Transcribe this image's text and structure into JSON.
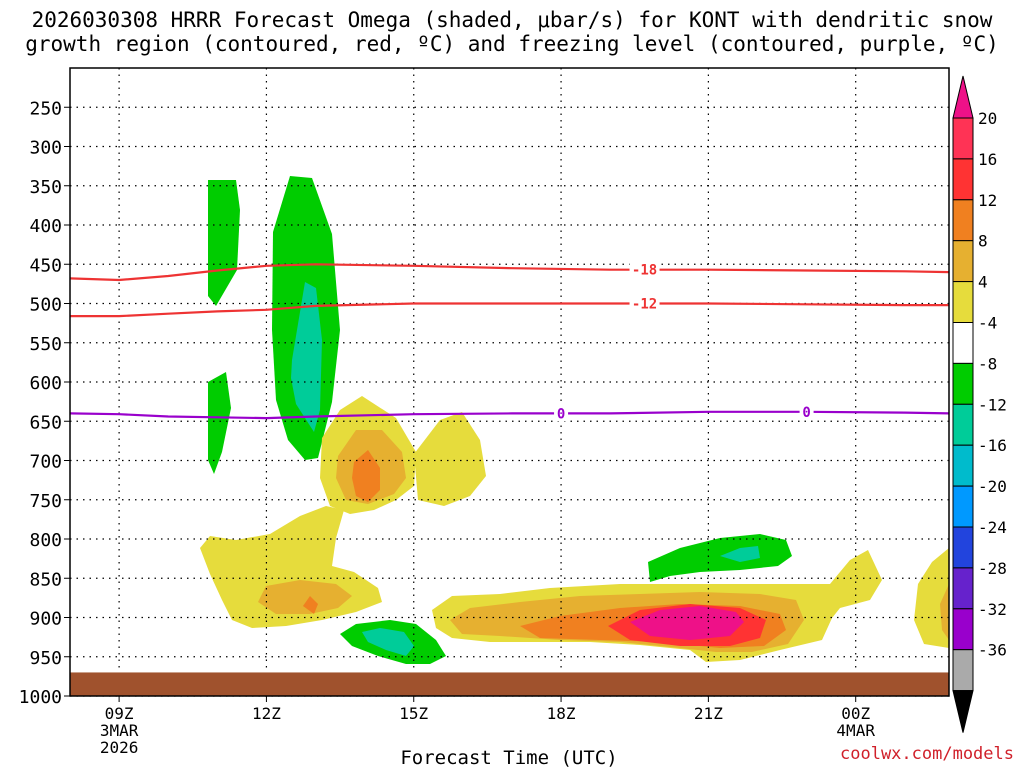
{
  "chart_data": {
    "type": "contour",
    "title_line1": "2026030308 HRRR Forecast Omega (shaded, μbar/s) for KONT with dendritic snow",
    "title_line2": "growth region (contoured, red, ºC) and freezing level (contoured, purple, ºC)",
    "xlabel": "Forecast Time (UTC)",
    "ylabel": "",
    "x_ticks": [
      {
        "value": 9,
        "label": "09Z",
        "sub1": "3MAR",
        "sub2": "2026"
      },
      {
        "value": 12,
        "label": "12Z",
        "sub1": "",
        "sub2": ""
      },
      {
        "value": 15,
        "label": "15Z",
        "sub1": "",
        "sub2": ""
      },
      {
        "value": 18,
        "label": "18Z",
        "sub1": "",
        "sub2": ""
      },
      {
        "value": 21,
        "label": "21Z",
        "sub1": "",
        "sub2": ""
      },
      {
        "value": 24,
        "label": "00Z",
        "sub1": "4MAR",
        "sub2": ""
      }
    ],
    "x_range": [
      8,
      25.9
    ],
    "y_ticks": [
      250,
      300,
      350,
      400,
      450,
      500,
      550,
      600,
      650,
      700,
      750,
      800,
      850,
      900,
      950,
      1000
    ],
    "y_range_hpa": [
      200,
      1000
    ],
    "colorbar": {
      "labels": [
        "20",
        "16",
        "12",
        "8",
        "4",
        "-4",
        "-8",
        "-12",
        "-16",
        "-20",
        "-24",
        "-28",
        "-32",
        "-36"
      ],
      "colors": [
        "#ff3355",
        "#ff3333",
        "#f08020",
        "#e6b030",
        "#e6dc3c",
        "#ffffff",
        "#00cc00",
        "#00cc99",
        "#00bbcc",
        "#0099ff",
        "#2244dd",
        "#6622cc",
        "#9900cc",
        "#aaaaaa"
      ],
      "top_color": "#ee1188",
      "bottom_color": "#000000"
    },
    "contours": [
      {
        "name": "dgz-top",
        "color": "#ee3333",
        "label": "-18",
        "label_x": 19.7,
        "points": [
          [
            8,
            468
          ],
          [
            9,
            470
          ],
          [
            10,
            465
          ],
          [
            11,
            458
          ],
          [
            12,
            452
          ],
          [
            13,
            450
          ],
          [
            15,
            452
          ],
          [
            17,
            455
          ],
          [
            19,
            457
          ],
          [
            21,
            457
          ],
          [
            23,
            458
          ],
          [
            25,
            459
          ],
          [
            25.9,
            460
          ]
        ]
      },
      {
        "name": "dgz-bottom",
        "color": "#ee3333",
        "label": "-12",
        "label_x": 19.7,
        "points": [
          [
            8,
            516
          ],
          [
            9,
            516
          ],
          [
            10,
            513
          ],
          [
            11,
            510
          ],
          [
            12,
            508
          ],
          [
            13,
            503
          ],
          [
            15,
            500
          ],
          [
            17,
            500
          ],
          [
            19,
            500
          ],
          [
            21,
            500
          ],
          [
            23,
            501
          ],
          [
            25,
            502
          ],
          [
            25.9,
            502
          ]
        ]
      },
      {
        "name": "freezing-level",
        "color": "#9900cc",
        "label": "0",
        "label_x": 18.0,
        "label_x2": 23.0,
        "points": [
          [
            8,
            640
          ],
          [
            9,
            641
          ],
          [
            10,
            644
          ],
          [
            11,
            645
          ],
          [
            12,
            646
          ],
          [
            13,
            644
          ],
          [
            15,
            641
          ],
          [
            17,
            640
          ],
          [
            19,
            640
          ],
          [
            21,
            638
          ],
          [
            23,
            638
          ],
          [
            25,
            639
          ],
          [
            25.9,
            640
          ]
        ]
      }
    ],
    "ground_hpa": 970,
    "ground_color": "#a0522d",
    "colors": {
      "yellow": "#e6dc3c",
      "lightorange": "#e6b030",
      "orange": "#f08020",
      "red": "#ff3333",
      "magenta": "#ee1188",
      "green": "#00cc00",
      "teal": "#00cc99"
    }
  },
  "credit": "coolwx.com/models"
}
